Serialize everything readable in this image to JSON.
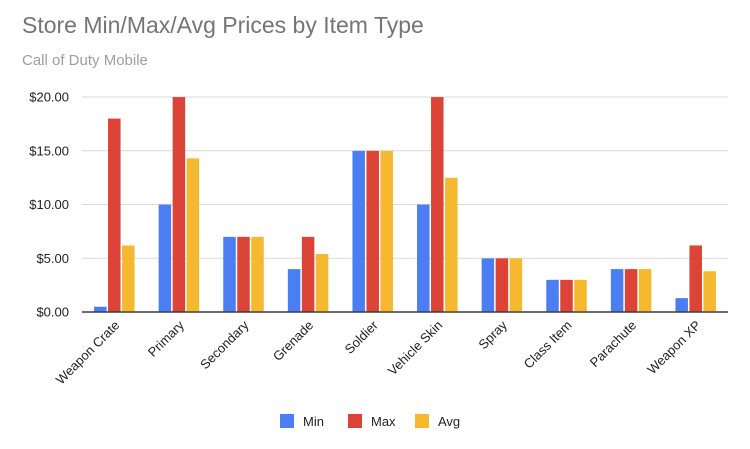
{
  "chart_data": {
    "type": "bar",
    "title": "Store Min/Max/Avg Prices by Item Type",
    "subtitle": "Call of Duty Mobile",
    "xlabel": "",
    "ylabel": "",
    "ylim": [
      0,
      20
    ],
    "y_ticks": [
      0,
      5,
      10,
      15,
      20
    ],
    "y_tick_labels": [
      "$0.00",
      "$5.00",
      "$10.00",
      "$15.00",
      "$20.00"
    ],
    "grid": true,
    "legend_position": "bottom",
    "categories": [
      "Weapon Crate",
      "Primary",
      "Secondary",
      "Grenade",
      "Soldier",
      "Vehicle Skin",
      "Spray",
      "Class Item",
      "Parachute",
      "Weapon XP"
    ],
    "series": [
      {
        "name": "Min",
        "color": "#4c7ef3",
        "values": [
          0.49,
          9.99,
          6.99,
          3.99,
          14.99,
          9.99,
          4.99,
          2.99,
          3.99,
          1.29
        ]
      },
      {
        "name": "Max",
        "color": "#db4437",
        "values": [
          17.99,
          19.99,
          6.99,
          6.99,
          14.99,
          19.99,
          4.99,
          2.99,
          3.99,
          6.19
        ]
      },
      {
        "name": "Avg",
        "color": "#f4b92f",
        "values": [
          6.19,
          14.29,
          6.99,
          5.39,
          14.99,
          12.49,
          4.99,
          2.99,
          3.99,
          3.79
        ]
      }
    ]
  }
}
